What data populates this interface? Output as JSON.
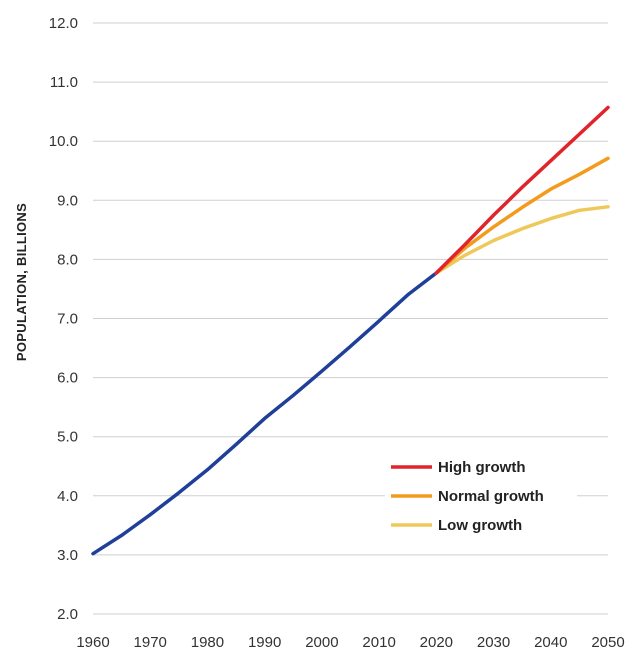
{
  "chart_data": {
    "type": "line",
    "title": "",
    "xlabel": "",
    "ylabel": "POPULATION, BILLIONS",
    "xlim": [
      1960,
      2050
    ],
    "ylim": [
      2.0,
      12.0
    ],
    "x_ticks": [
      "1960",
      "1970",
      "1980",
      "1990",
      "2000",
      "2010",
      "2020",
      "2030",
      "2040",
      "2050"
    ],
    "y_ticks": [
      "2.0",
      "3.0",
      "4.0",
      "5.0",
      "6.0",
      "7.0",
      "8.0",
      "9.0",
      "10.0",
      "11.0",
      "12.0"
    ],
    "grid": "horizontal",
    "legend_position": "bottom-right",
    "series": [
      {
        "color": "#1f3f99",
        "x": [
          1960,
          1965,
          1970,
          1975,
          1980,
          1985,
          1990,
          1995,
          2000,
          2005,
          2010,
          2015,
          2020
        ],
        "y": [
          3.02,
          3.33,
          3.68,
          4.05,
          4.44,
          4.87,
          5.31,
          5.7,
          6.11,
          6.53,
          6.96,
          7.4,
          7.77
        ]
      },
      {
        "name": "High growth",
        "color": "#e0242b",
        "x": [
          2020,
          2025,
          2030,
          2035,
          2040,
          2045,
          2050
        ],
        "y": [
          7.77,
          8.25,
          8.75,
          9.22,
          9.67,
          10.12,
          10.57
        ]
      },
      {
        "name": "Normal growth",
        "color": "#f39b1c",
        "x": [
          2020,
          2025,
          2030,
          2035,
          2040,
          2045,
          2050
        ],
        "y": [
          7.77,
          8.19,
          8.55,
          8.88,
          9.19,
          9.44,
          9.71
        ]
      },
      {
        "name": "Low growth",
        "color": "#efc85a",
        "x": [
          2020,
          2025,
          2030,
          2035,
          2040,
          2045,
          2050
        ],
        "y": [
          7.77,
          8.07,
          8.32,
          8.52,
          8.69,
          8.83,
          8.89
        ]
      }
    ]
  }
}
